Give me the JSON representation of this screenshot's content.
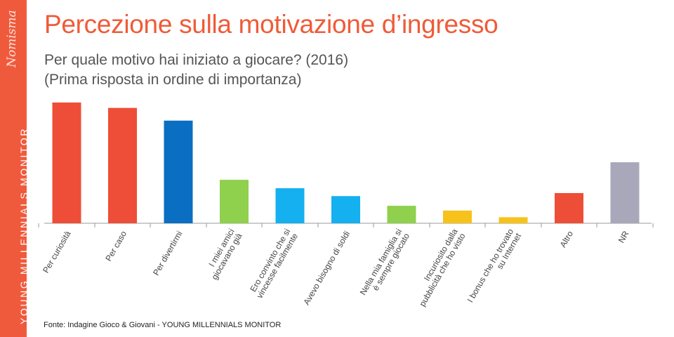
{
  "sidebar": {
    "brand": "Nomisma",
    "vertical_title": "YOUNG MILLENNIALS MONITOR",
    "color": "#f05a3c"
  },
  "header": {
    "title": "Percezione sulla motivazione d’ingresso",
    "subtitle_line1": "Per quale motivo hai iniziato a giocare? (2016)",
    "subtitle_line2": "(Prima risposta in ordine di importanza)"
  },
  "footer": {
    "source": "Fonte: Indagine Gioco & Giovani - YOUNG MILLENNIALS MONITOR"
  },
  "chart_data": {
    "type": "bar",
    "title": "Percezione sulla motivazione d’ingresso",
    "subtitle": "Per quale motivo hai iniziato a giocare? (2016) (Prima risposta in ordine di importanza)",
    "xlabel": "",
    "ylabel": "",
    "ylim": [
      0,
      100
    ],
    "grid": false,
    "legend": "none",
    "categories": [
      [
        "Per curiosità"
      ],
      [
        "Per caso"
      ],
      [
        "Per divertirmi"
      ],
      [
        "I miei amici",
        "giocavano già"
      ],
      [
        "Ero convinto che si",
        "vincesse facilmente"
      ],
      [
        "Avevo bisogno di soldi"
      ],
      [
        "Nella mia famiglia si",
        "è sempre giocato"
      ],
      [
        "Incuriosito dalla",
        "pubblicità che ho visto"
      ],
      [
        "I bonus che ho trovato",
        "su Internet"
      ],
      [
        "Altro"
      ],
      [
        "NR"
      ]
    ],
    "values": [
      100,
      95.5,
      85,
      36,
      29,
      22.5,
      14.5,
      10.5,
      5,
      25,
      50.5
    ],
    "colors": [
      "#ee4e38",
      "#ee4e38",
      "#0a6fc2",
      "#8fd04c",
      "#14b0ef",
      "#14b0ef",
      "#8fd04c",
      "#f7c21c",
      "#f7c21c",
      "#ee4e38",
      "#a8a8ba"
    ]
  }
}
